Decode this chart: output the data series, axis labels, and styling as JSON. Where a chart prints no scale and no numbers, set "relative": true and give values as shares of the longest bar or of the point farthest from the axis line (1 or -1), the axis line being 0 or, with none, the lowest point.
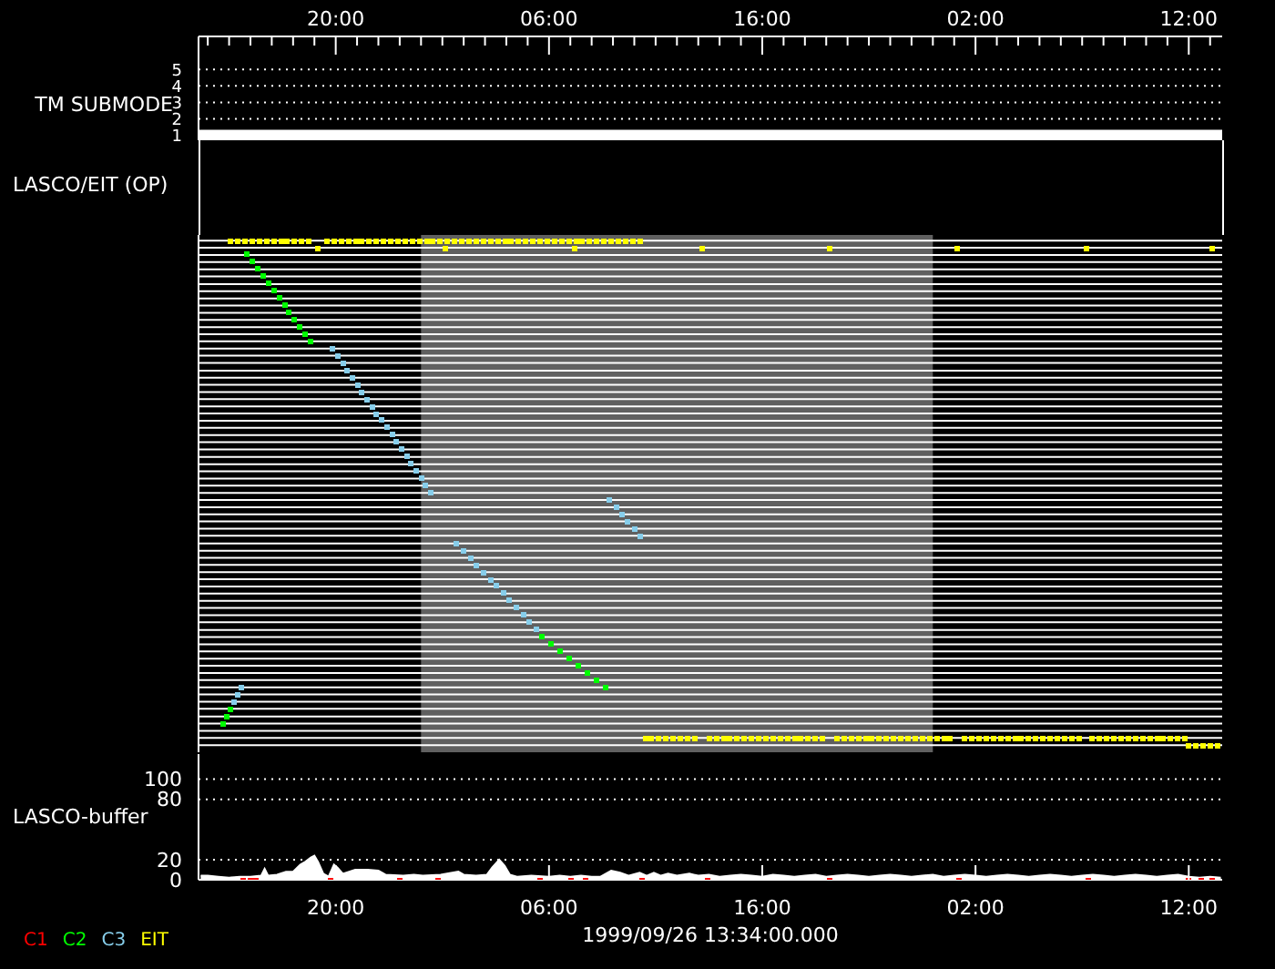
{
  "chart_data": [
    {
      "type": "line",
      "ylabel": "TM SUBMODE",
      "xlim": [
        "1999-09-26T13:34",
        "1999-09-28T13:34"
      ],
      "xticks": [
        {
          "value": "1999-09-26T14:00",
          "label": null
        },
        {
          "value": "1999-09-26T15:00",
          "label": null
        },
        {
          "value": "1999-09-26T16:00",
          "label": null
        },
        {
          "value": "1999-09-26T17:00",
          "label": null
        },
        {
          "value": "1999-09-26T18:00",
          "label": null
        },
        {
          "value": "1999-09-26T19:00",
          "label": null
        },
        {
          "value": "1999-09-26T20:00",
          "label": "20:00"
        },
        {
          "value": "1999-09-26T21:00",
          "label": null
        },
        {
          "value": "1999-09-26T22:00",
          "label": null
        },
        {
          "value": "1999-09-26T23:00",
          "label": null
        },
        {
          "value": "1999-09-27T00:00",
          "label": null
        },
        {
          "value": "1999-09-27T01:00",
          "label": null
        },
        {
          "value": "1999-09-27T02:00",
          "label": null
        },
        {
          "value": "1999-09-27T03:00",
          "label": null
        },
        {
          "value": "1999-09-27T04:00",
          "label": null
        },
        {
          "value": "1999-09-27T05:00",
          "label": null
        },
        {
          "value": "1999-09-27T06:00",
          "label": "06:00"
        },
        {
          "value": "1999-09-27T07:00",
          "label": null
        },
        {
          "value": "1999-09-27T08:00",
          "label": null
        },
        {
          "value": "1999-09-27T09:00",
          "label": null
        },
        {
          "value": "1999-09-27T10:00",
          "label": null
        },
        {
          "value": "1999-09-27T11:00",
          "label": null
        },
        {
          "value": "1999-09-27T12:00",
          "label": null
        },
        {
          "value": "1999-09-27T13:00",
          "label": null
        },
        {
          "value": "1999-09-27T14:00",
          "label": null
        },
        {
          "value": "1999-09-27T15:00",
          "label": null
        },
        {
          "value": "1999-09-27T16:00",
          "label": "16:00"
        },
        {
          "value": "1999-09-27T17:00",
          "label": null
        },
        {
          "value": "1999-09-27T18:00",
          "label": null
        },
        {
          "value": "1999-09-27T19:00",
          "label": null
        },
        {
          "value": "1999-09-27T20:00",
          "label": null
        },
        {
          "value": "1999-09-27T21:00",
          "label": null
        },
        {
          "value": "1999-09-27T22:00",
          "label": null
        },
        {
          "value": "1999-09-27T23:00",
          "label": null
        },
        {
          "value": "1999-09-28T00:00",
          "label": null
        },
        {
          "value": "1999-09-28T01:00",
          "label": null
        },
        {
          "value": "1999-09-28T02:00",
          "label": "02:00"
        },
        {
          "value": "1999-09-28T03:00",
          "label": null
        },
        {
          "value": "1999-09-28T04:00",
          "label": null
        },
        {
          "value": "1999-09-28T05:00",
          "label": null
        },
        {
          "value": "1999-09-28T06:00",
          "label": null
        },
        {
          "value": "1999-09-28T07:00",
          "label": null
        },
        {
          "value": "1999-09-28T08:00",
          "label": null
        },
        {
          "value": "1999-09-28T09:00",
          "label": null
        },
        {
          "value": "1999-09-28T10:00",
          "label": null
        },
        {
          "value": "1999-09-28T11:00",
          "label": null
        },
        {
          "value": "1999-09-28T12:00",
          "label": "12:00"
        },
        {
          "value": "1999-09-28T13:00",
          "label": null
        }
      ],
      "ylim": [
        0.7,
        7
      ],
      "yticks": [
        1,
        2,
        3,
        4,
        5
      ],
      "grid": "y",
      "series": [
        {
          "color": "#ffffff",
          "x": [
            "1999-09-26T13:34",
            "1999-09-28T13:34"
          ],
          "values": [
            1,
            1
          ]
        }
      ]
    },
    {
      "type": "scatter",
      "ylabel": "LASCO/EIT (OP)",
      "relative": true,
      "xlim": [
        "1999-09-26T13:34",
        "1999-09-28T13:34"
      ],
      "marker": "square",
      "bands": [
        {
          "axis": "x",
          "from": "1999-09-27T00:00",
          "to": "1999-09-28T00:00",
          "color": "#606060"
        }
      ],
      "ref_lines": [
        {
          "axis": "y",
          "value": 0.014,
          "color": "#ffffff"
        },
        {
          "axis": "y",
          "value": 0.028,
          "color": "#ffffff"
        },
        {
          "axis": "y",
          "value": 0.042,
          "color": "#ffffff"
        },
        {
          "axis": "y",
          "value": 0.056,
          "color": "#ffffff"
        },
        {
          "axis": "y",
          "value": 0.07,
          "color": "#ffffff"
        },
        {
          "axis": "y",
          "value": 0.085,
          "color": "#ffffff"
        },
        {
          "axis": "y",
          "value": 0.099,
          "color": "#ffffff"
        },
        {
          "axis": "y",
          "value": 0.113,
          "color": "#ffffff"
        },
        {
          "axis": "y",
          "value": 0.127,
          "color": "#ffffff"
        },
        {
          "axis": "y",
          "value": 0.141,
          "color": "#ffffff"
        },
        {
          "axis": "y",
          "value": 0.155,
          "color": "#ffffff"
        },
        {
          "axis": "y",
          "value": 0.169,
          "color": "#ffffff"
        },
        {
          "axis": "y",
          "value": 0.183,
          "color": "#ffffff"
        },
        {
          "axis": "y",
          "value": 0.197,
          "color": "#ffffff"
        },
        {
          "axis": "y",
          "value": 0.211,
          "color": "#ffffff"
        },
        {
          "axis": "y",
          "value": 0.225,
          "color": "#ffffff"
        },
        {
          "axis": "y",
          "value": 0.239,
          "color": "#ffffff"
        },
        {
          "axis": "y",
          "value": 0.254,
          "color": "#ffffff"
        },
        {
          "axis": "y",
          "value": 0.268,
          "color": "#ffffff"
        },
        {
          "axis": "y",
          "value": 0.282,
          "color": "#ffffff"
        },
        {
          "axis": "y",
          "value": 0.296,
          "color": "#ffffff"
        },
        {
          "axis": "y",
          "value": 0.31,
          "color": "#ffffff"
        },
        {
          "axis": "y",
          "value": 0.324,
          "color": "#ffffff"
        },
        {
          "axis": "y",
          "value": 0.338,
          "color": "#ffffff"
        },
        {
          "axis": "y",
          "value": 0.352,
          "color": "#ffffff"
        },
        {
          "axis": "y",
          "value": 0.366,
          "color": "#ffffff"
        },
        {
          "axis": "y",
          "value": 0.38,
          "color": "#ffffff"
        },
        {
          "axis": "y",
          "value": 0.394,
          "color": "#ffffff"
        },
        {
          "axis": "y",
          "value": 0.408,
          "color": "#ffffff"
        },
        {
          "axis": "y",
          "value": 0.423,
          "color": "#ffffff"
        },
        {
          "axis": "y",
          "value": 0.437,
          "color": "#ffffff"
        },
        {
          "axis": "y",
          "value": 0.451,
          "color": "#ffffff"
        },
        {
          "axis": "y",
          "value": 0.465,
          "color": "#ffffff"
        },
        {
          "axis": "y",
          "value": 0.479,
          "color": "#ffffff"
        },
        {
          "axis": "y",
          "value": 0.493,
          "color": "#ffffff"
        },
        {
          "axis": "y",
          "value": 0.507,
          "color": "#ffffff"
        },
        {
          "axis": "y",
          "value": 0.521,
          "color": "#ffffff"
        },
        {
          "axis": "y",
          "value": 0.535,
          "color": "#ffffff"
        },
        {
          "axis": "y",
          "value": 0.549,
          "color": "#ffffff"
        },
        {
          "axis": "y",
          "value": 0.563,
          "color": "#ffffff"
        },
        {
          "axis": "y",
          "value": 0.577,
          "color": "#ffffff"
        },
        {
          "axis": "y",
          "value": 0.592,
          "color": "#ffffff"
        },
        {
          "axis": "y",
          "value": 0.606,
          "color": "#ffffff"
        },
        {
          "axis": "y",
          "value": 0.62,
          "color": "#ffffff"
        },
        {
          "axis": "y",
          "value": 0.634,
          "color": "#ffffff"
        },
        {
          "axis": "y",
          "value": 0.648,
          "color": "#ffffff"
        },
        {
          "axis": "y",
          "value": 0.662,
          "color": "#ffffff"
        },
        {
          "axis": "y",
          "value": 0.676,
          "color": "#ffffff"
        },
        {
          "axis": "y",
          "value": 0.69,
          "color": "#ffffff"
        },
        {
          "axis": "y",
          "value": 0.704,
          "color": "#ffffff"
        },
        {
          "axis": "y",
          "value": 0.718,
          "color": "#ffffff"
        },
        {
          "axis": "y",
          "value": 0.732,
          "color": "#ffffff"
        },
        {
          "axis": "y",
          "value": 0.746,
          "color": "#ffffff"
        },
        {
          "axis": "y",
          "value": 0.761,
          "color": "#ffffff"
        },
        {
          "axis": "y",
          "value": 0.775,
          "color": "#ffffff"
        },
        {
          "axis": "y",
          "value": 0.789,
          "color": "#ffffff"
        },
        {
          "axis": "y",
          "value": 0.803,
          "color": "#ffffff"
        },
        {
          "axis": "y",
          "value": 0.817,
          "color": "#ffffff"
        },
        {
          "axis": "y",
          "value": 0.831,
          "color": "#ffffff"
        },
        {
          "axis": "y",
          "value": 0.845,
          "color": "#ffffff"
        },
        {
          "axis": "y",
          "value": 0.859,
          "color": "#ffffff"
        },
        {
          "axis": "y",
          "value": 0.873,
          "color": "#ffffff"
        },
        {
          "axis": "y",
          "value": 0.887,
          "color": "#ffffff"
        },
        {
          "axis": "y",
          "value": 0.901,
          "color": "#ffffff"
        },
        {
          "axis": "y",
          "value": 0.915,
          "color": "#ffffff"
        },
        {
          "axis": "y",
          "value": 0.93,
          "color": "#ffffff"
        },
        {
          "axis": "y",
          "value": 0.944,
          "color": "#ffffff"
        },
        {
          "axis": "y",
          "value": 0.958,
          "color": "#ffffff"
        },
        {
          "axis": "y",
          "value": 0.972,
          "color": "#ffffff"
        },
        {
          "axis": "y",
          "value": 0.986,
          "color": "#ffffff"
        },
        {
          "axis": "y",
          "value": 1,
          "color": "#ffffff"
        }
      ],
      "series": [
        {
          "name": "C2",
          "color": "#00ff00",
          "x": [
            "1999-09-26T15:50",
            "1999-09-26T16:05",
            "1999-09-26T16:20",
            "1999-09-26T16:35",
            "1999-09-26T16:50",
            "1999-09-26T17:05",
            "1999-09-26T17:20",
            "1999-09-26T17:35",
            "1999-09-26T17:50",
            "1999-09-26T18:05",
            "1999-09-26T18:20",
            "1999-09-26T18:35",
            "1999-09-26T18:50",
            "1999-09-27T05:40",
            "1999-09-27T06:06",
            "1999-09-27T06:31",
            "1999-09-27T06:57",
            "1999-09-27T07:23",
            "1999-09-27T07:49",
            "1999-09-27T08:14",
            "1999-09-27T08:40",
            "1999-09-26T14:42",
            "1999-09-26T14:52",
            "1999-09-26T15:02"
          ],
          "values": [
            0.972,
            0.958,
            0.944,
            0.93,
            0.915,
            0.901,
            0.887,
            0.873,
            0.859,
            0.845,
            0.831,
            0.817,
            0.803,
            0.225,
            0.211,
            0.197,
            0.183,
            0.169,
            0.155,
            0.141,
            0.127,
            0.056,
            0.07,
            0.085
          ]
        },
        {
          "name": "C3",
          "color": "#87ceeb",
          "x": [
            "1999-09-26T15:13",
            "1999-09-26T15:23",
            "1999-09-26T15:36",
            "1999-09-26T19:52",
            "1999-09-26T20:06",
            "1999-09-26T20:20",
            "1999-09-26T20:33",
            "1999-09-26T20:47",
            "1999-09-26T21:01",
            "1999-09-26T21:15",
            "1999-09-26T21:29",
            "1999-09-26T21:42",
            "1999-09-26T21:56",
            "1999-09-26T22:10",
            "1999-09-26T22:24",
            "1999-09-26T22:38",
            "1999-09-26T22:51",
            "1999-09-26T23:05",
            "1999-09-26T23:19",
            "1999-09-26T23:33",
            "1999-09-26T23:47",
            "1999-09-27T00:00",
            "1999-09-27T00:14",
            "1999-09-27T00:28",
            "1999-09-27T01:41",
            "1999-09-27T02:00",
            "1999-09-27T02:18",
            "1999-09-27T02:37",
            "1999-09-27T02:55",
            "1999-09-27T03:14",
            "1999-09-27T03:33",
            "1999-09-27T03:51",
            "1999-09-27T04:10",
            "1999-09-27T04:28",
            "1999-09-27T04:47",
            "1999-09-27T05:06",
            "1999-09-27T05:24",
            "1999-09-27T08:50",
            "1999-09-27T09:08",
            "1999-09-27T09:26",
            "1999-09-27T09:43",
            "1999-09-27T10:01",
            "1999-09-27T10:19"
          ],
          "values": [
            0.099,
            0.113,
            0.127,
            0.789,
            0.775,
            0.761,
            0.746,
            0.732,
            0.718,
            0.704,
            0.69,
            0.676,
            0.662,
            0.648,
            0.634,
            0.62,
            0.606,
            0.592,
            0.577,
            0.563,
            0.549,
            0.535,
            0.521,
            0.507,
            0.408,
            0.394,
            0.38,
            0.366,
            0.352,
            0.338,
            0.324,
            0.31,
            0.296,
            0.282,
            0.268,
            0.254,
            0.239,
            0.493,
            0.479,
            0.465,
            0.451,
            0.437,
            0.423
          ]
        },
        {
          "name": "EIT",
          "color": "#ffff00",
          "x": [
            "1999-09-26T15:05",
            "1999-09-26T15:25",
            "1999-09-26T15:45",
            "1999-09-26T16:05",
            "1999-09-26T16:25",
            "1999-09-26T16:45",
            "1999-09-26T17:05",
            "1999-09-26T17:25",
            "1999-09-26T17:45",
            "1999-09-26T18:05",
            "1999-09-26T18:25",
            "1999-09-26T18:45",
            "1999-09-26T19:35",
            "1999-09-26T19:55",
            "1999-09-26T20:15",
            "1999-09-26T20:35",
            "1999-09-26T20:55",
            "1999-09-26T21:15",
            "1999-09-26T21:35",
            "1999-09-26T21:55",
            "1999-09-26T22:15",
            "1999-09-26T22:35",
            "1999-09-26T22:55",
            "1999-09-26T23:15",
            "1999-09-26T23:35",
            "1999-09-26T23:55",
            "1999-09-27T00:15",
            "1999-09-27T00:35",
            "1999-09-27T00:55",
            "1999-09-27T01:15",
            "1999-09-27T01:35",
            "1999-09-27T01:55",
            "1999-09-27T02:15",
            "1999-09-27T02:35",
            "1999-09-27T02:55",
            "1999-09-27T03:15",
            "1999-09-27T03:35",
            "1999-09-27T03:55",
            "1999-09-27T04:15",
            "1999-09-27T04:35",
            "1999-09-27T04:55",
            "1999-09-27T05:15",
            "1999-09-27T05:35",
            "1999-09-27T05:55",
            "1999-09-27T06:15",
            "1999-09-27T06:35",
            "1999-09-27T06:55",
            "1999-09-27T07:15",
            "1999-09-27T07:35",
            "1999-09-27T07:55",
            "1999-09-27T08:15",
            "1999-09-27T08:35",
            "1999-09-27T08:55",
            "1999-09-27T09:15",
            "1999-09-27T09:35",
            "1999-09-27T09:55",
            "1999-09-27T10:15",
            "1999-09-26T19:10",
            "1999-09-27T01:10",
            "1999-09-27T07:10",
            "1999-09-27T13:10",
            "1999-09-27T19:10",
            "1999-09-28T01:10",
            "1999-09-28T07:10",
            "1999-09-28T13:05",
            "1999-09-27T10:30",
            "1999-09-27T10:50",
            "1999-09-27T11:10",
            "1999-09-27T11:30",
            "1999-09-27T11:50",
            "1999-09-27T12:10",
            "1999-09-27T12:30",
            "1999-09-27T12:50",
            "1999-09-27T13:30",
            "1999-09-27T13:50",
            "1999-09-27T14:10",
            "1999-09-27T14:30",
            "1999-09-27T14:50",
            "1999-09-27T15:10",
            "1999-09-27T15:30",
            "1999-09-27T15:50",
            "1999-09-27T16:10",
            "1999-09-27T16:30",
            "1999-09-27T16:50",
            "1999-09-27T17:10",
            "1999-09-27T17:30",
            "1999-09-27T17:50",
            "1999-09-27T18:10",
            "1999-09-27T18:30",
            "1999-09-27T18:50",
            "1999-09-27T19:30",
            "1999-09-27T19:50",
            "1999-09-27T20:10",
            "1999-09-27T20:30",
            "1999-09-27T20:50",
            "1999-09-27T21:10",
            "1999-09-27T21:30",
            "1999-09-27T21:50",
            "1999-09-27T22:10",
            "1999-09-27T22:30",
            "1999-09-27T22:50",
            "1999-09-27T23:10",
            "1999-09-27T23:30",
            "1999-09-27T23:50",
            "1999-09-28T00:10",
            "1999-09-28T00:30",
            "1999-09-28T00:50",
            "1999-09-28T01:30",
            "1999-09-28T01:50",
            "1999-09-28T02:10",
            "1999-09-28T02:30",
            "1999-09-28T02:50",
            "1999-09-28T03:10",
            "1999-09-28T03:30",
            "1999-09-28T03:50",
            "1999-09-28T04:10",
            "1999-09-28T04:30",
            "1999-09-28T04:50",
            "1999-09-28T05:10",
            "1999-09-28T05:30",
            "1999-09-28T05:50",
            "1999-09-28T06:10",
            "1999-09-28T06:30",
            "1999-09-28T06:50",
            "1999-09-28T07:30",
            "1999-09-28T07:50",
            "1999-09-28T08:10",
            "1999-09-28T08:30",
            "1999-09-28T08:50",
            "1999-09-28T09:10",
            "1999-09-28T09:30",
            "1999-09-28T09:50",
            "1999-09-28T10:10",
            "1999-09-28T10:30",
            "1999-09-28T10:50",
            "1999-09-28T11:10",
            "1999-09-28T11:30",
            "1999-09-28T11:50",
            "1999-09-28T12:00",
            "1999-09-28T12:20",
            "1999-09-28T12:40",
            "1999-09-28T13:00",
            "1999-09-28T13:20"
          ],
          "values": [
            1,
            1,
            1,
            1,
            1,
            1,
            1,
            1,
            1,
            1,
            1,
            1,
            1,
            1,
            1,
            1,
            1,
            1,
            1,
            1,
            1,
            1,
            1,
            1,
            1,
            1,
            1,
            1,
            1,
            1,
            1,
            1,
            1,
            1,
            1,
            1,
            1,
            1,
            1,
            1,
            1,
            1,
            1,
            1,
            1,
            1,
            1,
            1,
            1,
            1,
            1,
            1,
            1,
            1,
            1,
            1,
            1,
            0.986,
            0.986,
            0.986,
            0.986,
            0.986,
            0.986,
            0.986,
            0.986,
            0.028,
            0.028,
            0.028,
            0.028,
            0.028,
            0.028,
            0.028,
            0.028,
            0.028,
            0.028,
            0.028,
            0.028,
            0.028,
            0.028,
            0.028,
            0.028,
            0.028,
            0.028,
            0.028,
            0.028,
            0.028,
            0.028,
            0.028,
            0.028,
            0.028,
            0.028,
            0.028,
            0.028,
            0.028,
            0.028,
            0.028,
            0.028,
            0.028,
            0.028,
            0.028,
            0.028,
            0.028,
            0.028,
            0.028,
            0.028,
            0.028,
            0.028,
            0.028,
            0.028,
            0.028,
            0.028,
            0.028,
            0.028,
            0.028,
            0.028,
            0.028,
            0.028,
            0.028,
            0.028,
            0.028,
            0.028,
            0.028,
            0.028,
            0.028,
            0.028,
            0.028,
            0.028,
            0.028,
            0.028,
            0.028,
            0.028,
            0.028,
            0.028,
            0.028,
            0.028,
            0.028,
            0.028,
            0.028,
            0.014,
            0.014,
            0.014,
            0.014,
            0.014
          ]
        }
      ]
    },
    {
      "type": "area",
      "ylabel": "LASCO-buffer",
      "xlabel": "1999/09/26 13:34:00.000",
      "xlim": [
        "1999-09-26T13:34",
        "1999-09-28T13:34"
      ],
      "xticks": [
        {
          "value": "1999-09-26T20:00",
          "label": "20:00"
        },
        {
          "value": "1999-09-27T06:00",
          "label": "06:00"
        },
        {
          "value": "1999-09-27T16:00",
          "label": "16:00"
        },
        {
          "value": "1999-09-28T02:00",
          "label": "02:00"
        },
        {
          "value": "1999-09-28T12:00",
          "label": "12:00"
        }
      ],
      "ylim": [
        0,
        125
      ],
      "yticks": [
        0,
        20,
        80,
        100
      ],
      "grid": "y",
      "legend": "bottom left",
      "series": [
        {
          "color": "#ffffff",
          "x": [
            "1999-09-26T13:40",
            "1999-09-26T14:00",
            "1999-09-26T14:30",
            "1999-09-26T15:00",
            "1999-09-26T15:30",
            "1999-09-26T16:00",
            "1999-09-26T16:30",
            "1999-09-26T16:40",
            "1999-09-26T16:50",
            "1999-09-26T17:15",
            "1999-09-26T17:40",
            "1999-09-26T18:00",
            "1999-09-26T18:20",
            "1999-09-26T18:35",
            "1999-09-26T18:50",
            "1999-09-26T19:00",
            "1999-09-26T19:10",
            "1999-09-26T19:25",
            "1999-09-26T19:40",
            "1999-09-26T19:55",
            "1999-09-26T20:05",
            "1999-09-26T20:20",
            "1999-09-26T20:55",
            "1999-09-26T21:30",
            "1999-09-26T22:00",
            "1999-09-26T22:20",
            "1999-09-26T23:10",
            "1999-09-26T23:40",
            "1999-09-27T00:05",
            "1999-09-27T00:55",
            "1999-09-27T01:45",
            "1999-09-27T02:00",
            "1999-09-27T02:35",
            "1999-09-27T03:05",
            "1999-09-27T03:20",
            "1999-09-27T03:40",
            "1999-09-27T03:55",
            "1999-09-27T04:10",
            "1999-09-27T04:30",
            "1999-09-27T05:10",
            "1999-09-27T06:00",
            "1999-09-27T06:30",
            "1999-09-27T07:00",
            "1999-09-27T07:30",
            "1999-09-27T08:00",
            "1999-09-27T08:25",
            "1999-09-27T08:55",
            "1999-09-27T09:20",
            "1999-09-27T09:45",
            "1999-09-27T10:15",
            "1999-09-27T10:35",
            "1999-09-27T10:55",
            "1999-09-27T11:15",
            "1999-09-27T11:35",
            "1999-09-27T12:00",
            "1999-09-27T12:35",
            "1999-09-27T13:00",
            "1999-09-27T13:30",
            "1999-09-27T14:00",
            "1999-09-27T14:30",
            "1999-09-27T15:00",
            "1999-09-27T15:30",
            "1999-09-27T16:00",
            "1999-09-27T16:30",
            "1999-09-27T17:00",
            "1999-09-27T17:30",
            "1999-09-27T18:00",
            "1999-09-27T18:30",
            "1999-09-27T19:00",
            "1999-09-27T19:30",
            "1999-09-27T20:00",
            "1999-09-27T20:30",
            "1999-09-27T21:00",
            "1999-09-27T21:30",
            "1999-09-27T22:00",
            "1999-09-27T22:30",
            "1999-09-27T23:00",
            "1999-09-27T23:30",
            "1999-09-28T00:00",
            "1999-09-28T00:30",
            "1999-09-28T01:00",
            "1999-09-28T01:30",
            "1999-09-28T02:00",
            "1999-09-28T02:30",
            "1999-09-28T03:00",
            "1999-09-28T03:30",
            "1999-09-28T04:00",
            "1999-09-28T04:30",
            "1999-09-28T05:00",
            "1999-09-28T05:30",
            "1999-09-28T06:00",
            "1999-09-28T06:30",
            "1999-09-28T07:00",
            "1999-09-28T07:30",
            "1999-09-28T08:00",
            "1999-09-28T08:30",
            "1999-09-28T09:00",
            "1999-09-28T09:30",
            "1999-09-28T10:00",
            "1999-09-28T10:30",
            "1999-09-28T11:00",
            "1999-09-28T11:30",
            "1999-09-28T12:00",
            "1999-09-28T12:30",
            "1999-09-28T13:00",
            "1999-09-28T13:30"
          ],
          "values": [
            4,
            4,
            3,
            2,
            3,
            3,
            4,
            11,
            4,
            5,
            8,
            8,
            15,
            18,
            22,
            24,
            18,
            6,
            3,
            15,
            12,
            6,
            10,
            10,
            9,
            5,
            4,
            5,
            4,
            5,
            8,
            5,
            4,
            5,
            12,
            20,
            14,
            5,
            3,
            4,
            3,
            4,
            3,
            4,
            3,
            3,
            9,
            7,
            4,
            7,
            4,
            7,
            4,
            6,
            4,
            6,
            4,
            5,
            3,
            4,
            5,
            4,
            3,
            5,
            4,
            3,
            4,
            5,
            3,
            4,
            5,
            4,
            3,
            4,
            5,
            4,
            3,
            4,
            5,
            3,
            4,
            5,
            4,
            3,
            4,
            5,
            4,
            3,
            4,
            5,
            4,
            3,
            4,
            5,
            4,
            3,
            4,
            5,
            4,
            3,
            4,
            5,
            3,
            2,
            3,
            2
          ]
        },
        {
          "name": "C1",
          "type": "scatter",
          "marker": "square",
          "color": "#ff0000",
          "x": [
            "1999-09-26T15:41",
            "1999-09-26T16:01",
            "1999-09-26T16:16",
            "1999-09-26T19:45",
            "1999-09-26T22:58",
            "1999-09-27T00:50",
            "1999-09-27T05:35",
            "1999-09-27T07:01",
            "1999-09-27T07:42",
            "1999-09-27T10:22",
            "1999-09-27T13:27",
            "1999-09-27T19:08",
            "1999-09-28T01:14",
            "1999-09-28T07:15",
            "1999-09-28T12:00",
            "1999-09-28T12:36",
            "1999-09-28T13:06"
          ],
          "values": [
            0,
            0,
            0,
            0,
            0,
            0,
            0,
            0,
            0,
            0,
            0,
            0,
            0,
            0,
            0,
            0,
            0
          ]
        }
      ]
    }
  ]
}
